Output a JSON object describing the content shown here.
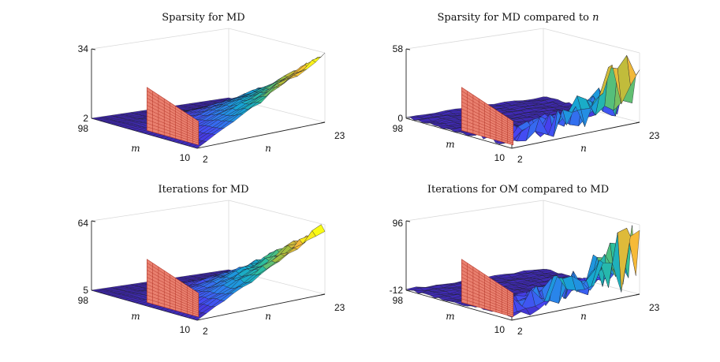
{
  "chart_data": [
    {
      "type": "surface",
      "title": "Sparsity for MD",
      "title_suffix": "",
      "xlabel": "n",
      "ylabel": "m",
      "x_ticks": [
        "2",
        "23"
      ],
      "y_ticks": [
        "98",
        "10"
      ],
      "z_ticks": [
        "34",
        "2"
      ],
      "xlim": [
        2,
        23
      ],
      "ylim": [
        10,
        98
      ],
      "zlim": [
        2,
        34
      ],
      "surface_shape": "ramp",
      "roughness": 0.35,
      "peak_z": 34,
      "grid": false
    },
    {
      "type": "surface",
      "title": "Sparsity for MD compared to ",
      "title_suffix": "n",
      "xlabel": "n",
      "ylabel": "m",
      "x_ticks": [
        "2",
        "23"
      ],
      "y_ticks": [
        "98",
        "10"
      ],
      "z_ticks": [
        "58",
        "0"
      ],
      "xlim": [
        2,
        23
      ],
      "ylim": [
        10,
        98
      ],
      "zlim": [
        0,
        58
      ],
      "surface_shape": "noisy",
      "roughness": 0.9,
      "peak_z": 58,
      "grid": false
    },
    {
      "type": "surface",
      "title": "Iterations for MD",
      "title_suffix": "",
      "xlabel": "n",
      "ylabel": "m",
      "x_ticks": [
        "2",
        "23"
      ],
      "y_ticks": [
        "98",
        "10"
      ],
      "z_ticks": [
        "64",
        "5"
      ],
      "xlim": [
        2,
        23
      ],
      "ylim": [
        10,
        98
      ],
      "zlim": [
        5,
        64
      ],
      "surface_shape": "ramp",
      "roughness": 0.6,
      "peak_z": 64,
      "grid": false
    },
    {
      "type": "surface",
      "title": "Iterations for OM compared to MD",
      "title_suffix": "",
      "xlabel": "n",
      "ylabel": "m",
      "x_ticks": [
        "2",
        "23"
      ],
      "y_ticks": [
        "98",
        "10"
      ],
      "z_ticks": [
        "96",
        "-12"
      ],
      "xlim": [
        2,
        23
      ],
      "ylim": [
        10,
        98
      ],
      "zlim": [
        -12,
        96
      ],
      "surface_shape": "noisy",
      "roughness": 1.0,
      "peak_z": 96,
      "grid": false
    }
  ],
  "colors": {
    "colormap": [
      "#3e26a8",
      "#4743f3",
      "#2d7eee",
      "#15a7d3",
      "#2ec09a",
      "#a5be3c",
      "#f6b839",
      "#f9fb15"
    ],
    "plane_fill": "#e9806f",
    "plane_grid": "#b03024"
  }
}
